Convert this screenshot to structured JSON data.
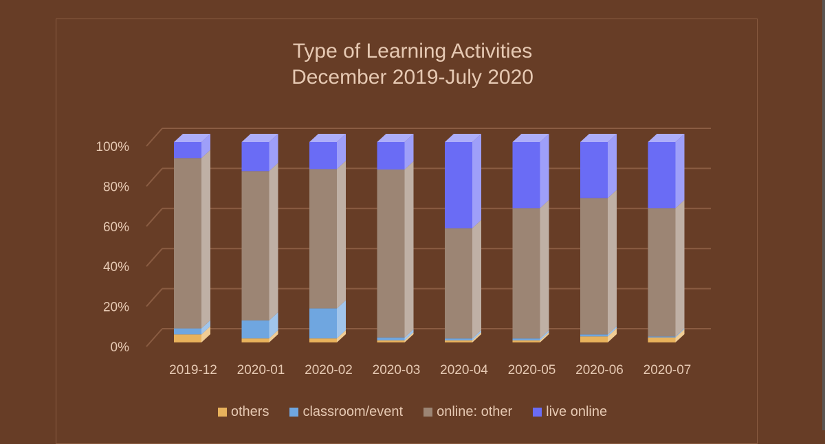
{
  "chart_data": {
    "type": "bar",
    "stacked": true,
    "percent": true,
    "style": "3d-column",
    "title": "Type of Learning Activities\nDecember 2019-July 2020",
    "title_lines": [
      "Type of Learning Activities",
      "December 2019-July 2020"
    ],
    "xlabel": "",
    "ylabel": "",
    "ylim": [
      0,
      100
    ],
    "yticks": [
      "0%",
      "20%",
      "40%",
      "60%",
      "80%",
      "100%"
    ],
    "grid": true,
    "legend_position": "bottom",
    "categories": [
      "2019-12",
      "2020-01",
      "2020-02",
      "2020-03",
      "2020-04",
      "2020-05",
      "2020-06",
      "2020-07"
    ],
    "series": [
      {
        "name": "others",
        "color": "#e8b25c",
        "values": [
          4,
          2,
          2,
          1,
          1,
          1,
          3,
          2.5
        ]
      },
      {
        "name": "classroom/event",
        "color": "#6fa6e0",
        "values": [
          3,
          9,
          15,
          1.5,
          1,
          1,
          1,
          0.5
        ]
      },
      {
        "name": "online: other",
        "color": "#9c8574",
        "values": [
          85,
          74.5,
          69.5,
          83.8,
          55,
          65,
          68,
          64
        ]
      },
      {
        "name": "live online",
        "color": "#6a6cf5",
        "values": [
          8,
          14.5,
          13.5,
          13.7,
          43,
          33,
          28,
          33
        ]
      }
    ]
  },
  "colors": {
    "background": "#673d26",
    "text": "#e6c9b3",
    "gridline": "#8a5c42"
  }
}
